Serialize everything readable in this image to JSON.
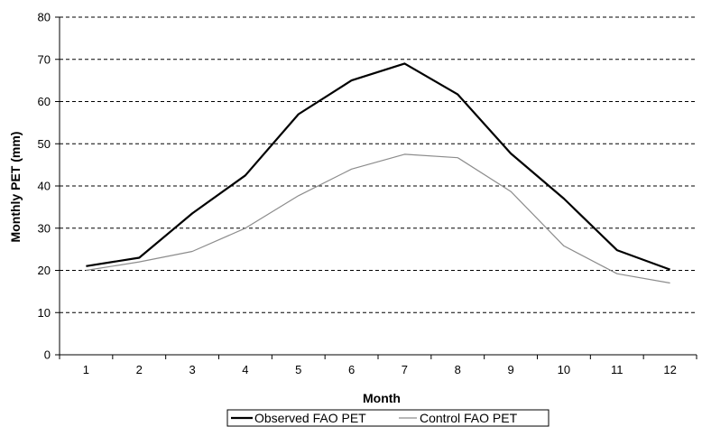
{
  "chart_data": {
    "type": "line",
    "title": "",
    "xlabel": "Month",
    "ylabel": "Monthly PET (mm)",
    "x": [
      1,
      2,
      3,
      4,
      5,
      6,
      7,
      8,
      9,
      10,
      11,
      12
    ],
    "ylim": [
      0,
      80
    ],
    "yticks": [
      0,
      10,
      20,
      30,
      40,
      50,
      60,
      70,
      80
    ],
    "grid": "horizontal-dashed",
    "legend_position": "bottom",
    "series": [
      {
        "name": "Observed FAO PET",
        "color": "#000000",
        "values": [
          21,
          23,
          33.5,
          42.5,
          57,
          65,
          69,
          61.7,
          47.7,
          37,
          24.8,
          20.2
        ]
      },
      {
        "name": "Control FAO PET",
        "color": "#8c8c8c",
        "values": [
          20,
          22,
          24.5,
          30,
          37.7,
          44,
          47.5,
          46.7,
          38.7,
          25.8,
          19.2,
          17
        ]
      }
    ]
  }
}
